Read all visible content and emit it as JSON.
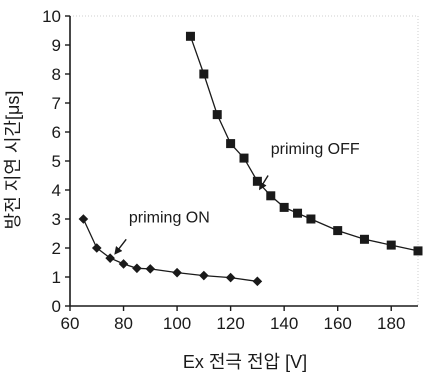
{
  "chart_data": {
    "type": "scatter",
    "xlabel": "Ex 전극 전압  [V]",
    "ylabel": "방전 지연 시간[μs]",
    "xlim": [
      60,
      190
    ],
    "ylim": [
      0,
      10
    ],
    "xticks": [
      60,
      80,
      100,
      120,
      140,
      160,
      180
    ],
    "yticks": [
      0,
      1,
      2,
      3,
      4,
      5,
      6,
      7,
      8,
      9,
      10
    ],
    "grid": false,
    "series": [
      {
        "name": "priming ON",
        "marker": "diamond",
        "color": "#1a1a1a",
        "x": [
          65,
          70,
          75,
          80,
          85,
          90,
          100,
          110,
          120,
          130
        ],
        "y": [
          3.0,
          2.0,
          1.65,
          1.45,
          1.3,
          1.28,
          1.15,
          1.05,
          0.98,
          0.85
        ]
      },
      {
        "name": "priming OFF",
        "marker": "square",
        "color": "#1a1a1a",
        "x": [
          105,
          110,
          115,
          120,
          125,
          130,
          135,
          140,
          145,
          150,
          160,
          170,
          180,
          190
        ],
        "y": [
          9.3,
          8.0,
          6.6,
          5.6,
          5.1,
          4.3,
          3.8,
          3.4,
          3.2,
          3.0,
          2.6,
          2.3,
          2.1,
          1.9
        ]
      }
    ],
    "annotations": [
      {
        "text": "priming OFF",
        "series": 1,
        "x": 131,
        "y": 4.05,
        "arrow_from_x": 134,
        "arrow_from_y": 4.5,
        "label_x": 135,
        "label_y": 5.25
      },
      {
        "text": "priming ON",
        "series": 0,
        "x": 77,
        "y": 1.82,
        "arrow_from_x": 81,
        "arrow_from_y": 2.3,
        "label_x": 82,
        "label_y": 2.88
      }
    ]
  }
}
